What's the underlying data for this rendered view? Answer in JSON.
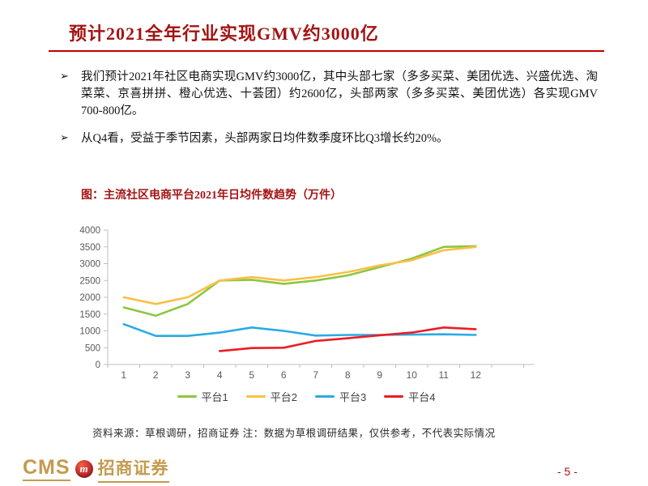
{
  "header": {
    "title": "预计2021全年行业实现GMV约3000亿"
  },
  "bullet_marker": "➢",
  "bullets": [
    "我们预计2021年社区电商实现GMV约3000亿，其中头部七家（多多买菜、美团优选、兴盛优选、淘菜菜、京喜拼拼、橙心优选、十荟团）约2600亿，头部两家（多多买菜、美团优选）各实现GMV 700-800亿。",
    "从Q4看，受益于季节因素，头部两家日均件数季度环比Q3增长约20%。"
  ],
  "chart": {
    "title": "图：主流社区电商平台2021年日均件数趋势（万件）",
    "source_note": "资料来源：草根调研，招商证券  注：数据为草根调研结果，仅供参考，不代表实际情况"
  },
  "chart_data": {
    "type": "line",
    "title": "主流社区电商平台2021年日均件数趋势（万件）",
    "categories": [
      1,
      2,
      3,
      4,
      5,
      6,
      7,
      8,
      9,
      10,
      11,
      12
    ],
    "series": [
      {
        "name": "平台1",
        "color": "#8DC63F",
        "values": [
          1700,
          1450,
          1800,
          2500,
          2520,
          2400,
          2500,
          2650,
          2900,
          3150,
          3500,
          3520
        ]
      },
      {
        "name": "平台2",
        "color": "#FBBF45",
        "values": [
          2000,
          1800,
          2000,
          2500,
          2600,
          2500,
          2600,
          2750,
          2950,
          3100,
          3400,
          3500
        ]
      },
      {
        "name": "平台3",
        "color": "#29ABE2",
        "values": [
          1200,
          850,
          850,
          950,
          1100,
          1000,
          860,
          880,
          880,
          890,
          900,
          880
        ]
      },
      {
        "name": "平台4",
        "color": "#ED1C24",
        "values": [
          null,
          null,
          null,
          400,
          490,
          500,
          700,
          780,
          870,
          950,
          1100,
          1050
        ]
      }
    ],
    "xlabel": "",
    "ylabel": "",
    "ylim": [
      0,
      4000
    ],
    "ytick_step": 500,
    "grid": false,
    "legend_position": "bottom"
  },
  "footer": {
    "logo_text_en": "CMS",
    "logo_mark_glyph": "m",
    "logo_text_cn": "招商证券",
    "page_number": "- 5 -"
  },
  "colors": {
    "title_red": "#A31414",
    "rule_red": "#C00000",
    "gold": "#C49A4D",
    "axis_gray": "#BFBFBF",
    "tick_label_gray": "#595959"
  }
}
